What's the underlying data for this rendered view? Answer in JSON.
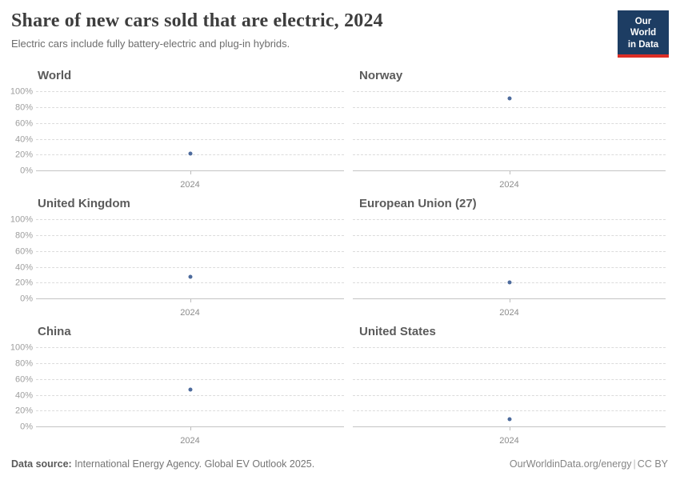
{
  "header": {
    "title": "Share of new cars sold that are electric, 2024",
    "subtitle": "Electric cars include fully battery-electric and plug-in hybrids.",
    "logo": {
      "line1": "Our World",
      "line2": "in Data",
      "bg_color": "#1d3d63",
      "accent_color": "#dc2e26"
    }
  },
  "chart_data": {
    "type": "scatter",
    "title": "Share of new cars sold that are electric, 2024",
    "subtitle": "Electric cars include fully battery-electric and plug-in hybrids.",
    "x_tick": "2024",
    "ylim": [
      0,
      100
    ],
    "y_ticks": [
      "0%",
      "20%",
      "40%",
      "60%",
      "80%",
      "100%"
    ],
    "grid": true,
    "legend": "none",
    "point_color": "#4c6a9c",
    "facets": [
      {
        "title": "World",
        "x": 2024,
        "value": 22
      },
      {
        "title": "Norway",
        "x": 2024,
        "value": 92
      },
      {
        "title": "United Kingdom",
        "x": 2024,
        "value": 28
      },
      {
        "title": "European Union (27)",
        "x": 2024,
        "value": 21
      },
      {
        "title": "China",
        "x": 2024,
        "value": 48
      },
      {
        "title": "United States",
        "x": 2024,
        "value": 10
      }
    ]
  },
  "footer": {
    "source_label": "Data source:",
    "source_text": " International Energy Agency. Global EV Outlook 2025.",
    "link": "OurWorldinData.org/energy",
    "separator": "|",
    "license": "CC BY"
  }
}
